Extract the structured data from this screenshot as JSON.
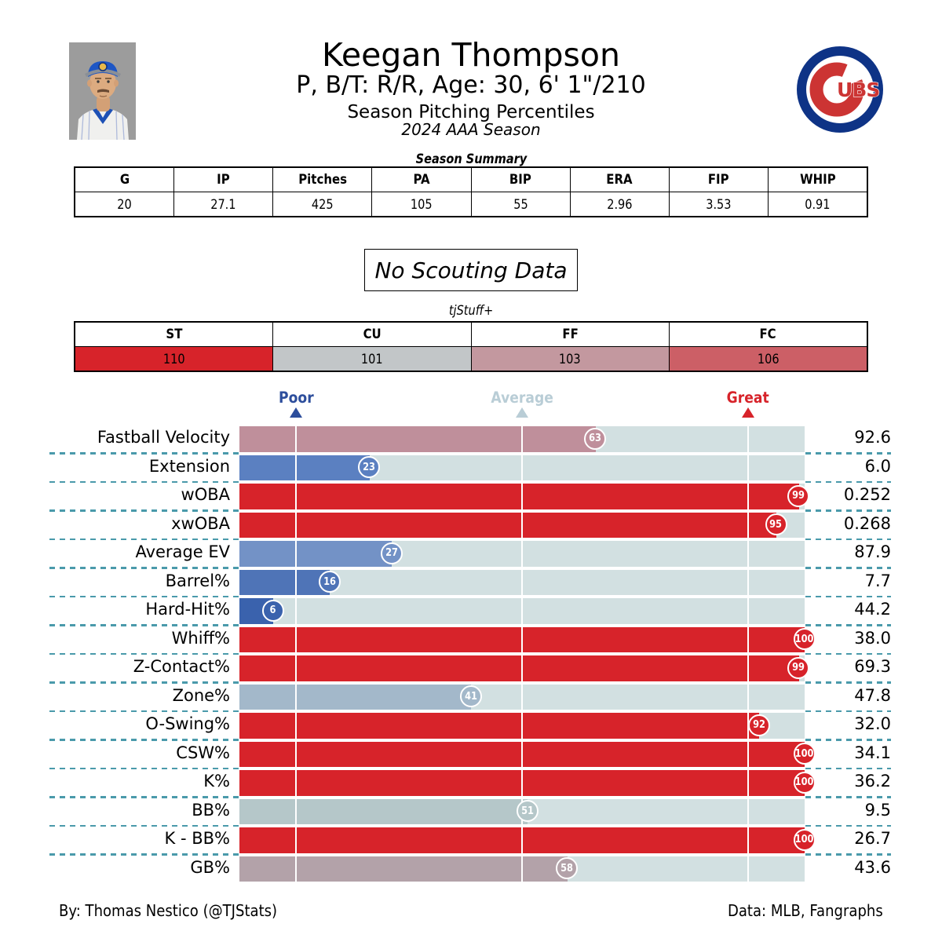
{
  "header": {
    "title": "Keegan Thompson",
    "subtitle": "P, B/T: R/R, Age: 30, 6' 1\"/210",
    "line3": "Season Pitching Percentiles",
    "line4": "2024 AAA Season"
  },
  "season_summary": {
    "title": "Season Summary",
    "columns": [
      "G",
      "IP",
      "Pitches",
      "PA",
      "BIP",
      "ERA",
      "FIP",
      "WHIP"
    ],
    "values": [
      "20",
      "27.1",
      "425",
      "105",
      "55",
      "2.96",
      "3.53",
      "0.91"
    ]
  },
  "scouting_note": "No Scouting Data",
  "tjstuff": {
    "title": "tjStuff+",
    "columns": [
      "ST",
      "CU",
      "FF",
      "FC"
    ],
    "values": [
      "110",
      "101",
      "103",
      "106"
    ],
    "cell_colors": [
      "#d7232a",
      "#c2c6c8",
      "#c3989f",
      "#cc5f66"
    ]
  },
  "legend": {
    "items": [
      {
        "label": "Poor",
        "color": "#2d4e9c",
        "position_pct": 10
      },
      {
        "label": "Average",
        "color": "#b9cdd6",
        "position_pct": 50
      },
      {
        "label": "Great",
        "color": "#d7232a",
        "position_pct": 90
      }
    ]
  },
  "chart_data": {
    "type": "bar",
    "title": "Season Pitching Percentiles",
    "categories": [
      "Fastball Velocity",
      "Extension",
      "wOBA",
      "xwOBA",
      "Average EV",
      "Barrel%",
      "Hard-Hit%",
      "Whiff%",
      "Z-Contact%",
      "Zone%",
      "O-Swing%",
      "CSW%",
      "K%",
      "BB%",
      "K - BB%",
      "GB%"
    ],
    "percentiles": [
      63,
      23,
      99,
      95,
      27,
      16,
      6,
      100,
      99,
      41,
      92,
      100,
      100,
      51,
      100,
      58
    ],
    "display_values": [
      "92.6",
      "6.0",
      "0.252",
      "0.268",
      "87.9",
      "7.7",
      "44.2",
      "38.0",
      "69.3",
      "47.8",
      "32.0",
      "34.1",
      "36.2",
      "9.5",
      "26.7",
      "43.6"
    ],
    "bar_colors": [
      "#bf8f9b",
      "#5b80c1",
      "#d7232a",
      "#d7232a",
      "#7392c6",
      "#4f74b7",
      "#3a62ad",
      "#d7232a",
      "#d7232a",
      "#a3b8ca",
      "#d7232a",
      "#d7232a",
      "#d7232a",
      "#b5c7c9",
      "#d7232a",
      "#b3a2a9"
    ],
    "track_color": "#d2e0e1",
    "gridline_pcts": [
      10,
      50,
      90
    ],
    "xlim": [
      0,
      100
    ],
    "separator_color": "#4a9aab"
  },
  "logos": {
    "team_logo": "chicago-cubs",
    "team_logo_text": "UBS",
    "team_blue": "#0e3386",
    "team_red": "#cc3433"
  },
  "footer": {
    "left": "By: Thomas Nestico (@TJStats)",
    "right": "Data: MLB, Fangraphs"
  }
}
